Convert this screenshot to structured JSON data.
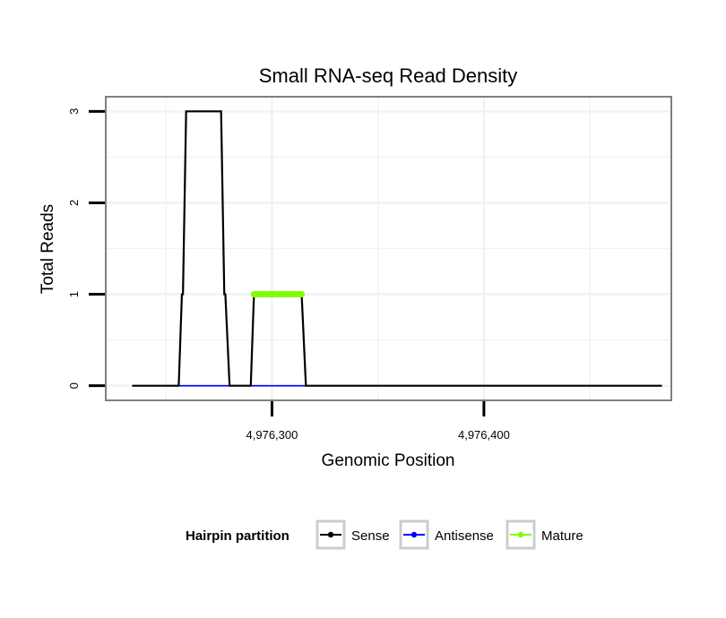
{
  "chart_data": {
    "type": "line",
    "title": "Small RNA-seq Read Density",
    "xlabel": "Genomic Position",
    "ylabel": "Total Reads",
    "xlim": [
      4976222,
      4976488
    ],
    "ylim": [
      -0.15,
      3.15
    ],
    "x_ticks": [
      4976300,
      4976400
    ],
    "x_tick_labels": [
      "4,976,300",
      "4,976,400"
    ],
    "y_ticks": [
      0,
      1,
      2,
      3
    ],
    "y_tick_labels": [
      "0",
      "1",
      "2",
      "3"
    ],
    "grid": true,
    "legend": {
      "title": "Hairpin partition",
      "position": "bottom",
      "entries": [
        {
          "label": "Sense",
          "color": "#000000"
        },
        {
          "label": "Antisense",
          "color": "#0000ff"
        },
        {
          "label": "Mature",
          "color": "#7fff00"
        }
      ]
    },
    "series": [
      {
        "name": "Sense",
        "color": "#000000",
        "x": [
          4976234,
          4976256,
          4976257.5,
          4976258,
          4976259.5,
          4976276,
          4976277.5,
          4976278,
          4976280,
          4976290,
          4976291.5,
          4976314,
          4976316,
          4976484
        ],
        "y": [
          0,
          0,
          1,
          1,
          3,
          3,
          1,
          1,
          0,
          0,
          1,
          1,
          0,
          0
        ]
      },
      {
        "name": "Antisense",
        "color": "#0000ff",
        "x": [
          4976256,
          4976316
        ],
        "y": [
          0,
          0
        ]
      },
      {
        "name": "Mature",
        "color": "#7fff00",
        "x": [
          4976291.5,
          4976314
        ],
        "y": [
          1,
          1
        ]
      }
    ]
  }
}
